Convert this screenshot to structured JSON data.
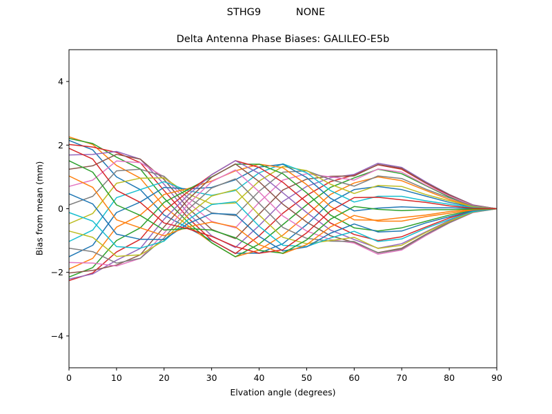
{
  "figure": {
    "suptitle_station": "STHG9",
    "suptitle_radome": "NONE",
    "suptitle": "STHG9           NONE"
  },
  "chart_data": {
    "type": "line",
    "title": "Delta Antenna Phase Biases: GALILEO-E5b",
    "xlabel": "Elvation angle (degrees)",
    "ylabel": "Bias from mean (mm)",
    "xlim": [
      0,
      90
    ],
    "ylim": [
      -5,
      5
    ],
    "grid": false,
    "legend": "none",
    "xticks": [
      0,
      10,
      20,
      30,
      40,
      50,
      60,
      70,
      80,
      90
    ],
    "xtick_labels": [
      "0",
      "10",
      "20",
      "30",
      "40",
      "50",
      "60",
      "70",
      "80",
      "90"
    ],
    "yticks": [
      4,
      2,
      0,
      -2,
      -4
    ],
    "ytick_labels": [
      "4",
      "2",
      "0",
      "−2",
      "−4"
    ],
    "x": [
      0,
      5,
      10,
      15,
      20,
      25,
      30,
      35,
      40,
      45,
      50,
      55,
      60,
      65,
      70,
      75,
      80,
      85,
      90
    ],
    "colors": [
      "#1f77b4",
      "#ff7f0e",
      "#2ca02c",
      "#d62728",
      "#9467bd",
      "#8c564b",
      "#e377c2",
      "#7f7f7f",
      "#bcbd22",
      "#17becf"
    ],
    "series": [
      {
        "name": "s0",
        "values": [
          2.15,
          1.85,
          1.0,
          0.6,
          -0.2,
          -0.6,
          -1.0,
          -1.4,
          -1.4,
          -1.1,
          -0.5,
          0.2,
          0.6,
          0.7,
          0.6,
          0.4,
          0.2,
          0.05,
          0
        ]
      },
      {
        "name": "s1",
        "values": [
          2.26,
          2.02,
          1.36,
          0.96,
          0.07,
          -0.53,
          -1.07,
          -1.51,
          -1.3,
          -0.83,
          -0.2,
          0.45,
          0.81,
          1.0,
          0.88,
          0.58,
          0.29,
          0.08,
          0
        ]
      },
      {
        "name": "s2",
        "values": [
          2.21,
          2.05,
          1.62,
          1.25,
          0.33,
          -0.42,
          -1.07,
          -1.51,
          -1.11,
          -0.5,
          0.12,
          0.67,
          0.97,
          1.24,
          1.1,
          0.73,
          0.37,
          0.09,
          0
        ]
      },
      {
        "name": "s3",
        "values": [
          2.02,
          1.94,
          1.77,
          1.45,
          0.57,
          -0.28,
          -0.99,
          -1.41,
          -0.85,
          -0.14,
          0.42,
          0.85,
          1.06,
          1.38,
          1.24,
          0.81,
          0.42,
          0.11,
          0
        ]
      },
      {
        "name": "s4",
        "values": [
          1.69,
          1.71,
          1.8,
          1.56,
          0.77,
          -0.13,
          -0.85,
          -1.22,
          -0.53,
          0.23,
          0.7,
          0.97,
          1.08,
          1.43,
          1.3,
          0.85,
          0.45,
          0.12,
          0
        ]
      },
      {
        "name": "s5",
        "values": [
          1.24,
          1.35,
          1.71,
          1.56,
          0.92,
          0.03,
          -0.65,
          -0.94,
          -0.17,
          0.59,
          0.93,
          1.02,
          1.03,
          1.39,
          1.27,
          0.82,
          0.44,
          0.11,
          0
        ]
      },
      {
        "name": "s6",
        "values": [
          0.7,
          0.9,
          1.5,
          1.45,
          1.0,
          0.2,
          -0.4,
          -0.6,
          0.2,
          0.9,
          1.1,
          1.0,
          0.9,
          1.25,
          1.15,
          0.75,
          0.4,
          0.1,
          0
        ]
      },
      {
        "name": "s7",
        "values": [
          0.12,
          0.39,
          1.19,
          1.24,
          1.02,
          0.35,
          -0.13,
          -0.22,
          0.55,
          1.15,
          1.19,
          0.92,
          0.71,
          1.03,
          0.95,
          0.62,
          0.34,
          0.09,
          0
        ]
      },
      {
        "name": "s8",
        "values": [
          -0.47,
          -0.15,
          0.8,
          0.96,
          0.97,
          0.47,
          0.15,
          0.18,
          0.87,
          1.33,
          1.2,
          0.77,
          0.48,
          0.73,
          0.7,
          0.45,
          0.25,
          0.06,
          0
        ]
      },
      {
        "name": "s9",
        "values": [
          -1.03,
          -0.67,
          0.35,
          0.6,
          0.85,
          0.57,
          0.42,
          0.57,
          1.13,
          1.41,
          1.13,
          0.57,
          0.21,
          0.39,
          0.39,
          0.25,
          0.14,
          0.04,
          0
        ]
      },
      {
        "name": "s10",
        "values": [
          -1.51,
          -1.15,
          -0.12,
          0.21,
          0.67,
          0.62,
          0.67,
          0.91,
          1.31,
          1.4,
          0.98,
          0.33,
          -0.07,
          0.02,
          0.06,
          0.03,
          0.03,
          0.01,
          0
        ]
      },
      {
        "name": "s11",
        "values": [
          -1.9,
          -1.56,
          -0.58,
          -0.2,
          0.45,
          0.63,
          0.87,
          1.19,
          1.4,
          1.29,
          0.76,
          0.07,
          -0.35,
          -0.36,
          -0.28,
          -0.2,
          -0.09,
          -0.02,
          0
        ]
      },
      {
        "name": "s12",
        "values": [
          -2.15,
          -1.85,
          -1.0,
          -0.6,
          0.2,
          0.6,
          1.0,
          1.4,
          1.4,
          1.1,
          0.5,
          -0.2,
          -0.6,
          -0.7,
          -0.6,
          -0.4,
          -0.2,
          -0.05,
          0
        ]
      },
      {
        "name": "s13",
        "values": [
          -2.26,
          -2.02,
          -1.36,
          -0.96,
          -0.07,
          0.53,
          1.07,
          1.51,
          1.3,
          0.83,
          0.2,
          -0.45,
          -0.81,
          -1.0,
          -0.88,
          -0.58,
          -0.29,
          -0.08,
          0
        ]
      },
      {
        "name": "s14",
        "values": [
          -2.21,
          -2.05,
          -1.62,
          -1.25,
          -0.33,
          0.42,
          1.07,
          1.51,
          1.11,
          0.5,
          -0.12,
          -0.67,
          -0.97,
          -1.24,
          -1.1,
          -0.73,
          -0.37,
          -0.09,
          0
        ]
      },
      {
        "name": "s15",
        "values": [
          -2.02,
          -1.94,
          -1.77,
          -1.45,
          -0.57,
          0.28,
          0.99,
          1.41,
          0.85,
          0.14,
          -0.42,
          -0.85,
          -1.06,
          -1.38,
          -1.24,
          -0.81,
          -0.42,
          -0.11,
          0
        ]
      },
      {
        "name": "s16",
        "values": [
          -1.69,
          -1.71,
          -1.8,
          -1.56,
          -0.77,
          0.13,
          0.85,
          1.22,
          0.53,
          -0.23,
          -0.7,
          -0.97,
          -1.08,
          -1.43,
          -1.3,
          -0.85,
          -0.45,
          -0.12,
          0
        ]
      },
      {
        "name": "s17",
        "values": [
          -1.24,
          -1.35,
          -1.71,
          -1.56,
          -0.92,
          -0.03,
          0.65,
          0.94,
          0.17,
          -0.59,
          -0.93,
          -1.02,
          -1.03,
          -1.39,
          -1.27,
          -0.82,
          -0.44,
          -0.11,
          0
        ]
      },
      {
        "name": "s18",
        "values": [
          -0.7,
          -0.9,
          -1.5,
          -1.45,
          -1.0,
          -0.2,
          0.4,
          0.6,
          -0.2,
          -0.9,
          -1.1,
          -1.0,
          -0.9,
          -1.25,
          -1.15,
          -0.75,
          -0.4,
          -0.1,
          0
        ]
      },
      {
        "name": "s19",
        "values": [
          -0.12,
          -0.39,
          -1.19,
          -1.24,
          -1.02,
          -0.35,
          0.13,
          0.22,
          -0.55,
          -1.15,
          -1.19,
          -0.92,
          -0.71,
          -1.03,
          -0.95,
          -0.62,
          -0.34,
          -0.09,
          0
        ]
      },
      {
        "name": "s20",
        "values": [
          0.47,
          0.15,
          -0.8,
          -0.96,
          -0.97,
          -0.47,
          -0.15,
          -0.18,
          -0.87,
          -1.33,
          -1.2,
          -0.77,
          -0.48,
          -0.73,
          -0.7,
          -0.45,
          -0.25,
          -0.06,
          0
        ]
      },
      {
        "name": "s21",
        "values": [
          1.03,
          0.67,
          -0.35,
          -0.6,
          -0.85,
          -0.57,
          -0.42,
          -0.57,
          -1.13,
          -1.41,
          -1.13,
          -0.57,
          -0.21,
          -0.39,
          -0.39,
          -0.25,
          -0.14,
          -0.04,
          0
        ]
      },
      {
        "name": "s22",
        "values": [
          1.51,
          1.15,
          0.12,
          -0.21,
          -0.67,
          -0.62,
          -0.67,
          -0.91,
          -1.31,
          -1.4,
          -0.98,
          -0.33,
          0.07,
          -0.02,
          -0.06,
          -0.03,
          -0.03,
          -0.01,
          0
        ]
      },
      {
        "name": "s23",
        "values": [
          1.9,
          1.56,
          0.58,
          0.2,
          -0.45,
          -0.63,
          -0.87,
          -1.19,
          -1.4,
          -1.29,
          -0.76,
          -0.07,
          0.35,
          0.36,
          0.28,
          0.2,
          0.09,
          0.02,
          0
        ]
      }
    ]
  }
}
